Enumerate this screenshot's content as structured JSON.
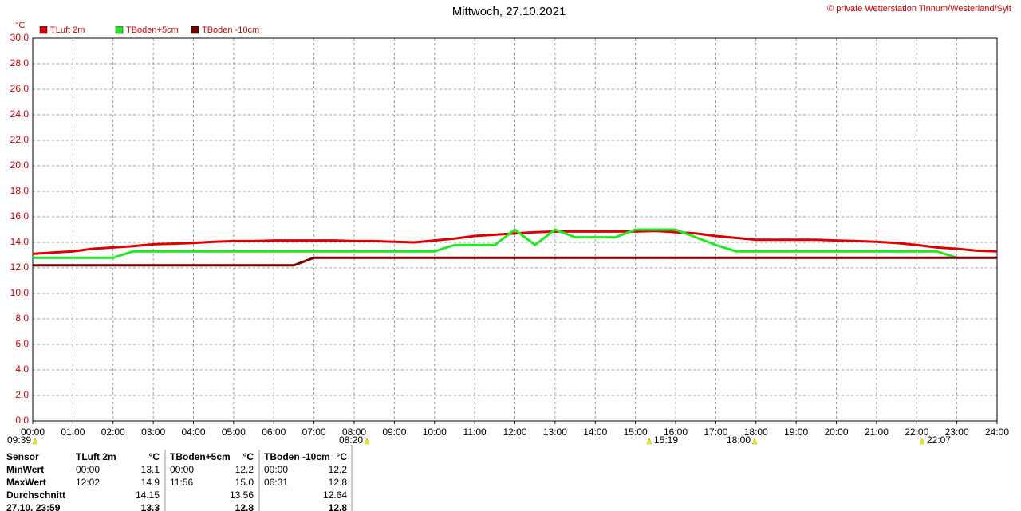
{
  "chart_data": {
    "type": "line",
    "title": "Mittwoch, 27.10.2021",
    "credit": "© private Wetterstation Tinnum/Westerland/Sylt",
    "y_unit": "°C",
    "x": [
      0,
      0.5,
      1,
      1.5,
      2,
      2.5,
      3,
      3.5,
      4,
      4.5,
      5,
      5.5,
      6,
      6.5,
      7,
      7.5,
      8,
      8.5,
      9,
      9.5,
      10,
      10.5,
      11,
      11.5,
      12,
      12.5,
      13,
      13.5,
      14,
      14.5,
      15,
      15.5,
      16,
      16.5,
      17,
      17.5,
      18,
      18.5,
      19,
      19.5,
      20,
      20.5,
      21,
      21.5,
      22,
      22.5,
      23,
      23.5,
      24
    ],
    "series": [
      {
        "name": "TLuft 2m",
        "color": "#e00000",
        "values": [
          13.1,
          13.2,
          13.3,
          13.5,
          13.6,
          13.7,
          13.85,
          13.9,
          13.95,
          14.05,
          14.1,
          14.1,
          14.15,
          14.15,
          14.15,
          14.15,
          14.1,
          14.1,
          14.05,
          14.0,
          14.15,
          14.3,
          14.5,
          14.6,
          14.7,
          14.8,
          14.85,
          14.85,
          14.85,
          14.85,
          14.85,
          14.9,
          14.8,
          14.7,
          14.5,
          14.35,
          14.2,
          14.2,
          14.2,
          14.2,
          14.15,
          14.1,
          14.05,
          13.95,
          13.8,
          13.6,
          13.5,
          13.35,
          13.3
        ]
      },
      {
        "name": "TBoden+5cm",
        "color": "#22e822",
        "values": [
          12.8,
          12.8,
          12.8,
          12.8,
          12.8,
          13.3,
          13.3,
          13.3,
          13.3,
          13.3,
          13.3,
          13.3,
          13.3,
          13.3,
          13.3,
          13.3,
          13.3,
          13.3,
          13.3,
          13.3,
          13.3,
          13.8,
          13.8,
          13.8,
          15.0,
          13.8,
          15.0,
          14.4,
          14.4,
          14.4,
          15.0,
          15.0,
          15.0,
          14.4,
          13.8,
          13.3,
          13.3,
          13.3,
          13.3,
          13.3,
          13.3,
          13.3,
          13.3,
          13.3,
          13.3,
          13.3,
          12.8,
          12.8,
          12.8
        ]
      },
      {
        "name": "TBoden -10cm",
        "color": "#7a0000",
        "values": [
          12.2,
          12.2,
          12.2,
          12.2,
          12.2,
          12.2,
          12.2,
          12.2,
          12.2,
          12.2,
          12.2,
          12.2,
          12.2,
          12.2,
          12.8,
          12.8,
          12.8,
          12.8,
          12.8,
          12.8,
          12.8,
          12.8,
          12.8,
          12.8,
          12.8,
          12.8,
          12.8,
          12.8,
          12.8,
          12.8,
          12.8,
          12.8,
          12.8,
          12.8,
          12.8,
          12.8,
          12.8,
          12.8,
          12.8,
          12.8,
          12.8,
          12.8,
          12.8,
          12.8,
          12.8,
          12.8,
          12.8,
          12.8,
          12.8
        ]
      }
    ],
    "xlim": [
      0,
      24
    ],
    "xticks": [
      {
        "value": 0,
        "label": "00:00"
      },
      {
        "value": 1,
        "label": "01:00"
      },
      {
        "value": 2,
        "label": "02:00"
      },
      {
        "value": 3,
        "label": "03:00"
      },
      {
        "value": 4,
        "label": "04:00"
      },
      {
        "value": 5,
        "label": "05:00"
      },
      {
        "value": 6,
        "label": "06:00"
      },
      {
        "value": 7,
        "label": "07:00"
      },
      {
        "value": 8,
        "label": "08:00"
      },
      {
        "value": 9,
        "label": "09:00"
      },
      {
        "value": 10,
        "label": "10:00"
      },
      {
        "value": 11,
        "label": "11:00"
      },
      {
        "value": 12,
        "label": "12:00"
      },
      {
        "value": 13,
        "label": "13:00"
      },
      {
        "value": 14,
        "label": "14:00"
      },
      {
        "value": 15,
        "label": "15:00"
      },
      {
        "value": 16,
        "label": "16:00"
      },
      {
        "value": 17,
        "label": "17:00"
      },
      {
        "value": 18,
        "label": "18:00"
      },
      {
        "value": 19,
        "label": "19:00"
      },
      {
        "value": 20,
        "label": "20:00"
      },
      {
        "value": 21,
        "label": "21:00"
      },
      {
        "value": 22,
        "label": "22:00"
      },
      {
        "value": 23,
        "label": "23:00"
      },
      {
        "value": 24,
        "label": "24:00"
      }
    ],
    "ylim": [
      0,
      30
    ],
    "yticks": [
      {
        "value": 0,
        "label": "0.0"
      },
      {
        "value": 2,
        "label": "2.0"
      },
      {
        "value": 4,
        "label": "4.0"
      },
      {
        "value": 6,
        "label": "6.0"
      },
      {
        "value": 8,
        "label": "8.0"
      },
      {
        "value": 10,
        "label": "10.0"
      },
      {
        "value": 12,
        "label": "12.0"
      },
      {
        "value": 14,
        "label": "14.0"
      },
      {
        "value": 16,
        "label": "16.0"
      },
      {
        "value": 18,
        "label": "18.0"
      },
      {
        "value": 20,
        "label": "20.0"
      },
      {
        "value": 22,
        "label": "22.0"
      },
      {
        "value": 24,
        "label": "24.0"
      },
      {
        "value": 26,
        "label": "26.0"
      },
      {
        "value": 28,
        "label": "28.0"
      },
      {
        "value": 30,
        "label": "30.0"
      }
    ],
    "grid": true,
    "annotations": [
      "09:39",
      "08:20",
      "15:19",
      "18:00",
      "22:07"
    ]
  },
  "table": {
    "header": [
      "Sensor",
      "TLuft 2m",
      "°C",
      "TBoden+5cm",
      "°C",
      "TBoden -10cm",
      "°C"
    ],
    "rows": [
      [
        "MinWert",
        "00:00",
        "13.1",
        "00:00",
        "12.2",
        "00:00",
        "12.2"
      ],
      [
        "MaxWert",
        "12:02",
        "14.9",
        "11:56",
        "15.0",
        "06:31",
        "12.8"
      ],
      [
        "Durchschnitt",
        null,
        "14.15",
        null,
        "13.56",
        null,
        "12.64"
      ],
      [
        "27.10. 23:59",
        null,
        "13.3",
        null,
        "12.8",
        null,
        "12.8"
      ]
    ]
  }
}
